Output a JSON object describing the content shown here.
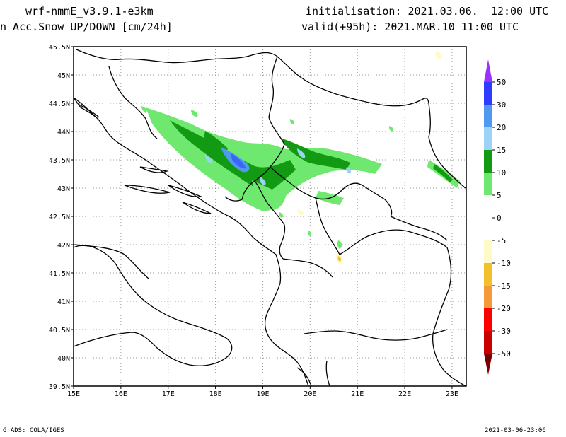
{
  "header": {
    "model": "wrf-nmmE_v3.9.1-e3km",
    "field": "n Acc.Snow UP/DOWN [cm/24h]",
    "initialisation": "initialisation: 2021.03.06.  12:00 UTC",
    "valid": "valid(+95h): 2021.MAR.10 11:00 UTC"
  },
  "footer": {
    "left": "GrADS: COLA/IGES",
    "right": "2021-03-06-23:06"
  },
  "map": {
    "lon_range": [
      15,
      23.3
    ],
    "lat_range": [
      39.5,
      45.5
    ],
    "x_ticks": [
      "15E",
      "16E",
      "17E",
      "18E",
      "19E",
      "20E",
      "21E",
      "22E",
      "23E"
    ],
    "y_ticks": [
      "39.5N",
      "40N",
      "40.5N",
      "41N",
      "41.5N",
      "42N",
      "42.5N",
      "43N",
      "43.5N",
      "44N",
      "44.5N",
      "45N",
      "45.5N"
    ],
    "grid": true
  },
  "colorbar": {
    "labels": [
      "50",
      "30",
      "20",
      "15",
      "10",
      "5",
      "0",
      "-5",
      "-10",
      "-15",
      "-20",
      "-30",
      "-50"
    ],
    "colors": {
      "top_arrow": "#9b30ff",
      "c30_50": "#2e3cff",
      "c20_30": "#4f9af0",
      "c15_20": "#9dd2f7",
      "c10_15": "#139a13",
      "c5_10": "#6fe86f",
      "c0_5": "#ffffff",
      "cm5_0": "#ffffff",
      "cm10_m5": "#fffbc8",
      "cm15_m10": "#f2c02c",
      "cm20_m15": "#f59a3a",
      "cm30_m20": "#ff0000",
      "cm50_m30": "#c80000",
      "bottom_arrow": "#7a0000"
    }
  }
}
